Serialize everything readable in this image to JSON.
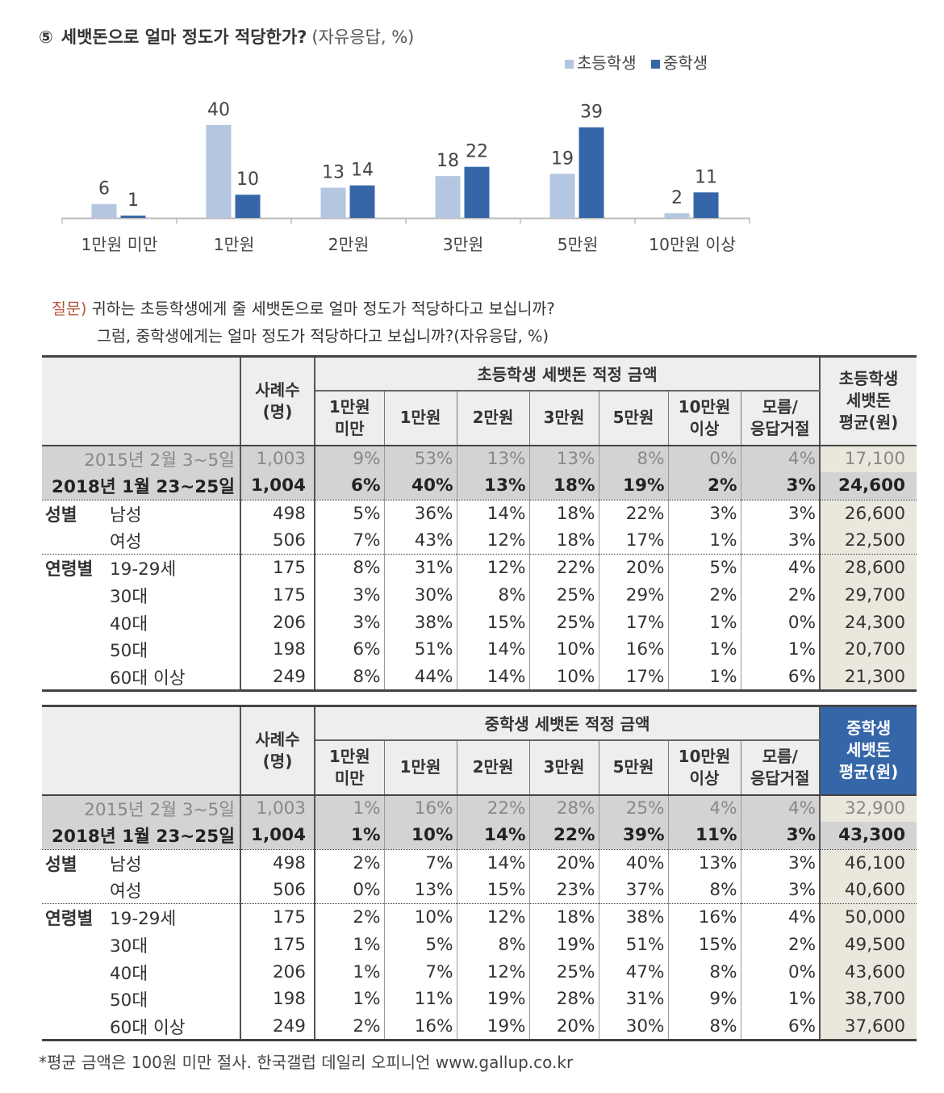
{
  "chart_data": {
    "type": "bar",
    "title": "세뱃돈으로 얼마 정도가 적당한가?",
    "title_marker": "⑤",
    "unit": "(자유응답, %)",
    "categories": [
      "1만원 미만",
      "1만원",
      "2만원",
      "3만원",
      "5만원",
      "10만원 이상"
    ],
    "series": [
      {
        "name": "초등학생",
        "color": "#b4c6e0",
        "values": [
          6,
          40,
          13,
          18,
          19,
          2
        ]
      },
      {
        "name": "중학생",
        "color": "#3766a8",
        "values": [
          1,
          10,
          14,
          22,
          39,
          11
        ]
      }
    ],
    "ylim": [
      0,
      45
    ],
    "legend_position": "top-right",
    "grid": false
  },
  "question": {
    "label": "질문)",
    "line1": "귀하는 초등학생에게 줄 세뱃돈으로 얼마 정도가 적당하다고 보십니까?",
    "line2": "그럼, 중학생에게는 얼마 정도가 적당하다고 보십니까?(자유응답, %)"
  },
  "tables": [
    {
      "case_header": "사례수\n(명)",
      "group_header": "초등학생 세뱃돈 적정 금액",
      "avg_header": "초등학생\n세뱃돈\n평균(원)",
      "columns": [
        "1만원\n미만",
        "1만원",
        "2만원",
        "3만원",
        "5만원",
        "10만원\n이상",
        "모름/\n응답거절"
      ],
      "rows": [
        {
          "cat": "",
          "label": "2015년 2월 3~5일",
          "n": "1,003",
          "values": [
            "9%",
            "53%",
            "13%",
            "13%",
            "8%",
            "0%",
            "4%"
          ],
          "avg": "17,100"
        },
        {
          "cat": "",
          "label": "2018년 1월 23~25일",
          "n": "1,004",
          "values": [
            "6%",
            "40%",
            "13%",
            "18%",
            "19%",
            "2%",
            "3%"
          ],
          "avg": "24,600"
        },
        {
          "cat": "성별",
          "label": "남성",
          "n": "498",
          "values": [
            "5%",
            "36%",
            "14%",
            "18%",
            "22%",
            "3%",
            "3%"
          ],
          "avg": "26,600"
        },
        {
          "cat": "",
          "label": "여성",
          "n": "506",
          "values": [
            "7%",
            "43%",
            "12%",
            "18%",
            "17%",
            "1%",
            "3%"
          ],
          "avg": "22,500"
        },
        {
          "cat": "연령별",
          "label": "19-29세",
          "n": "175",
          "values": [
            "8%",
            "31%",
            "12%",
            "22%",
            "20%",
            "5%",
            "4%"
          ],
          "avg": "28,600"
        },
        {
          "cat": "",
          "label": "30대",
          "n": "175",
          "values": [
            "3%",
            "30%",
            "8%",
            "25%",
            "29%",
            "2%",
            "2%"
          ],
          "avg": "29,700"
        },
        {
          "cat": "",
          "label": "40대",
          "n": "206",
          "values": [
            "3%",
            "38%",
            "15%",
            "25%",
            "17%",
            "1%",
            "0%"
          ],
          "avg": "24,300"
        },
        {
          "cat": "",
          "label": "50대",
          "n": "198",
          "values": [
            "6%",
            "51%",
            "14%",
            "10%",
            "16%",
            "1%",
            "1%"
          ],
          "avg": "20,700"
        },
        {
          "cat": "",
          "label": "60대 이상",
          "n": "249",
          "values": [
            "8%",
            "44%",
            "14%",
            "10%",
            "17%",
            "1%",
            "6%"
          ],
          "avg": "21,300"
        }
      ]
    },
    {
      "case_header": "사례수\n(명)",
      "group_header": "중학생 세뱃돈 적정 금액",
      "avg_header": "중학생\n세뱃돈\n평균(원)",
      "columns": [
        "1만원\n미만",
        "1만원",
        "2만원",
        "3만원",
        "5만원",
        "10만원\n이상",
        "모름/\n응답거절"
      ],
      "rows": [
        {
          "cat": "",
          "label": "2015년 2월 3~5일",
          "n": "1,003",
          "values": [
            "1%",
            "16%",
            "22%",
            "28%",
            "25%",
            "4%",
            "4%"
          ],
          "avg": "32,900"
        },
        {
          "cat": "",
          "label": "2018년 1월 23~25일",
          "n": "1,004",
          "values": [
            "1%",
            "10%",
            "14%",
            "22%",
            "39%",
            "11%",
            "3%"
          ],
          "avg": "43,300"
        },
        {
          "cat": "성별",
          "label": "남성",
          "n": "498",
          "values": [
            "2%",
            "7%",
            "14%",
            "20%",
            "40%",
            "13%",
            "3%"
          ],
          "avg": "46,100"
        },
        {
          "cat": "",
          "label": "여성",
          "n": "506",
          "values": [
            "0%",
            "13%",
            "15%",
            "23%",
            "37%",
            "8%",
            "3%"
          ],
          "avg": "40,600"
        },
        {
          "cat": "연령별",
          "label": "19-29세",
          "n": "175",
          "values": [
            "2%",
            "10%",
            "12%",
            "18%",
            "38%",
            "16%",
            "4%"
          ],
          "avg": "50,000"
        },
        {
          "cat": "",
          "label": "30대",
          "n": "175",
          "values": [
            "1%",
            "5%",
            "8%",
            "19%",
            "51%",
            "15%",
            "2%"
          ],
          "avg": "49,500"
        },
        {
          "cat": "",
          "label": "40대",
          "n": "206",
          "values": [
            "1%",
            "7%",
            "12%",
            "25%",
            "47%",
            "8%",
            "0%"
          ],
          "avg": "43,600"
        },
        {
          "cat": "",
          "label": "50대",
          "n": "198",
          "values": [
            "1%",
            "11%",
            "19%",
            "28%",
            "31%",
            "9%",
            "1%"
          ],
          "avg": "38,700"
        },
        {
          "cat": "",
          "label": "60대 이상",
          "n": "249",
          "values": [
            "2%",
            "16%",
            "19%",
            "20%",
            "30%",
            "8%",
            "6%"
          ],
          "avg": "37,600"
        }
      ]
    }
  ],
  "footnote": "*평균 금액은 100원 미만 절사. 한국갤럽 데일리 오피니언 www.gallup.co.kr"
}
